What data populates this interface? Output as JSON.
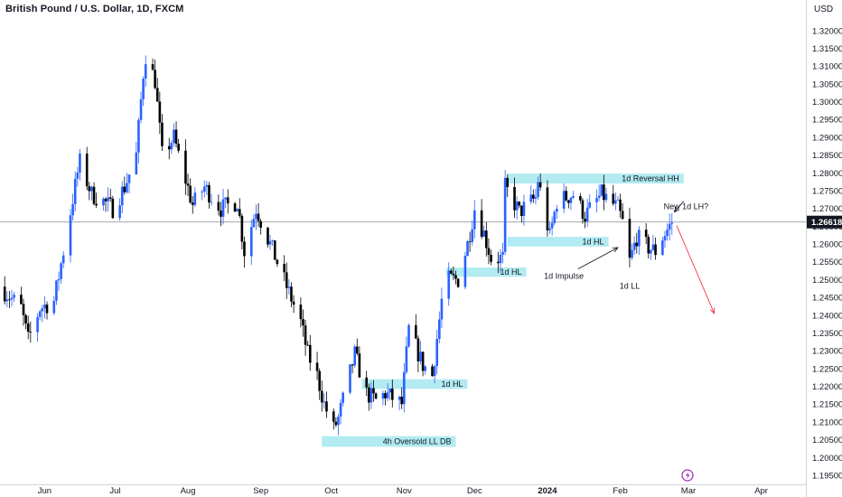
{
  "header": {
    "symbol_title": "British Pound / U.S. Dollar, 1D, FXCM",
    "currency": "USD"
  },
  "colors": {
    "bull": "#2962ff",
    "bear": "#000000",
    "zone": "#b2ebf2",
    "arrow_red": "#f23645",
    "price_line": "#9598a1",
    "axis_border": "#d1d4dc"
  },
  "chart_data": {
    "type": "candlestick",
    "y_axis": {
      "min": 1.195,
      "max": 1.3235,
      "ticks": [
        "1.32000",
        "1.31500",
        "1.31000",
        "1.30500",
        "1.30000",
        "1.29500",
        "1.29000",
        "1.28500",
        "1.28000",
        "1.27500",
        "1.27000",
        "1.26500",
        "1.26000",
        "1.25500",
        "1.25000",
        "1.24500",
        "1.24000",
        "1.23500",
        "1.23000",
        "1.22500",
        "1.22000",
        "1.21500",
        "1.21000",
        "1.20500",
        "1.20000",
        "1.19500"
      ],
      "tick_values": [
        1.32,
        1.315,
        1.31,
        1.305,
        1.3,
        1.295,
        1.29,
        1.285,
        1.28,
        1.275,
        1.27,
        1.265,
        1.26,
        1.255,
        1.25,
        1.245,
        1.24,
        1.235,
        1.23,
        1.225,
        1.22,
        1.215,
        1.21,
        1.205,
        1.2,
        1.195
      ]
    },
    "x_axis": {
      "start": "2023-05-13",
      "end": "2024-04-20",
      "ticks": [
        {
          "label": "Jun",
          "date": "2023-06-01"
        },
        {
          "label": "Jul",
          "date": "2023-07-01"
        },
        {
          "label": "Aug",
          "date": "2023-08-01"
        },
        {
          "label": "Sep",
          "date": "2023-09-01"
        },
        {
          "label": "Oct",
          "date": "2023-10-01"
        },
        {
          "label": "Nov",
          "date": "2023-11-01"
        },
        {
          "label": "Dec",
          "date": "2023-12-01"
        },
        {
          "label": "2024",
          "date": "2024-01-01",
          "bold": true
        },
        {
          "label": "Feb",
          "date": "2024-02-01"
        },
        {
          "label": "Mar",
          "date": "2024-03-01"
        },
        {
          "label": "Apr",
          "date": "2024-04-01"
        }
      ]
    },
    "current_price": 1.26618,
    "current_price_label": "1.26618",
    "close_path": [
      [
        "2023-05-13",
        1.248
      ],
      [
        "2023-05-22",
        1.242
      ],
      [
        "2023-05-25",
        1.233
      ],
      [
        "2023-05-30",
        1.242
      ],
      [
        "2023-06-05",
        1.244
      ],
      [
        "2023-06-09",
        1.258
      ],
      [
        "2023-06-15",
        1.28
      ],
      [
        "2023-06-16",
        1.283
      ],
      [
        "2023-06-21",
        1.274
      ],
      [
        "2023-06-26",
        1.272
      ],
      [
        "2023-06-30",
        1.27
      ],
      [
        "2023-07-05",
        1.276
      ],
      [
        "2023-07-10",
        1.285
      ],
      [
        "2023-07-13",
        1.308
      ],
      [
        "2023-07-14",
        1.313
      ],
      [
        "2023-07-18",
        1.306
      ],
      [
        "2023-07-21",
        1.285
      ],
      [
        "2023-07-26",
        1.29
      ],
      [
        "2023-07-28",
        1.285
      ],
      [
        "2023-08-03",
        1.271
      ],
      [
        "2023-08-08",
        1.276
      ],
      [
        "2023-08-15",
        1.27
      ],
      [
        "2023-08-22",
        1.272
      ],
      [
        "2023-08-25",
        1.258
      ],
      [
        "2023-08-30",
        1.27
      ],
      [
        "2023-09-05",
        1.26
      ],
      [
        "2023-09-12",
        1.248
      ],
      [
        "2023-09-18",
        1.238
      ],
      [
        "2023-09-21",
        1.229
      ],
      [
        "2023-09-25",
        1.223
      ],
      [
        "2023-09-28",
        1.215
      ],
      [
        "2023-10-02",
        1.208
      ],
      [
        "2023-10-04",
        1.211
      ],
      [
        "2023-10-11",
        1.229
      ],
      [
        "2023-10-16",
        1.218
      ],
      [
        "2023-10-20",
        1.216
      ],
      [
        "2023-10-24",
        1.218
      ],
      [
        "2023-10-31",
        1.215
      ],
      [
        "2023-11-03",
        1.236
      ],
      [
        "2023-11-09",
        1.226
      ],
      [
        "2023-11-13",
        1.223
      ],
      [
        "2023-11-17",
        1.244
      ],
      [
        "2023-11-20",
        1.25
      ],
      [
        "2023-11-24",
        1.25
      ],
      [
        "2023-11-28",
        1.26
      ],
      [
        "2023-12-01",
        1.27
      ],
      [
        "2023-12-05",
        1.263
      ],
      [
        "2023-12-08",
        1.256
      ],
      [
        "2023-12-13",
        1.256
      ],
      [
        "2023-12-14",
        1.276
      ],
      [
        "2023-12-20",
        1.269
      ],
      [
        "2023-12-27",
        1.273
      ],
      [
        "2023-12-28",
        1.278
      ],
      [
        "2024-01-02",
        1.262
      ],
      [
        "2024-01-05",
        1.272
      ],
      [
        "2024-01-12",
        1.274
      ],
      [
        "2024-01-17",
        1.268
      ],
      [
        "2024-01-24",
        1.274
      ],
      [
        "2024-01-31",
        1.27
      ],
      [
        "2024-02-02",
        1.266
      ],
      [
        "2024-02-05",
        1.255
      ],
      [
        "2024-02-08",
        1.262
      ],
      [
        "2024-02-13",
        1.259
      ],
      [
        "2024-02-16",
        1.258
      ],
      [
        "2024-02-19",
        1.262
      ],
      [
        "2024-02-22",
        1.265
      ],
      [
        "2024-02-23",
        1.2662
      ]
    ],
    "zones": [
      {
        "label": "1d Reversal HH",
        "start": "2023-12-15",
        "end": "2024-02-28",
        "low": 1.277,
        "high": 1.2798
      },
      {
        "label": "1d HL",
        "start": "2023-12-15",
        "end": "2024-01-27",
        "low": 1.2593,
        "high": 1.262
      },
      {
        "label": "1d HL",
        "start": "2023-11-19",
        "end": "2023-12-23",
        "low": 1.2508,
        "high": 1.2534
      },
      {
        "label": "1d HL",
        "start": "2023-10-14",
        "end": "2023-11-28",
        "low": 1.2193,
        "high": 1.222
      },
      {
        "label": "4h Oversold LL DB",
        "start": "2023-09-27",
        "end": "2023-11-23",
        "low": 1.203,
        "high": 1.206
      }
    ],
    "annotations": [
      {
        "text": "1d Impulse",
        "date": "2024-01-08",
        "price": 1.251
      },
      {
        "text": "1d LL",
        "date": "2024-02-05",
        "price": 1.2482
      },
      {
        "text": "New 1d LH?",
        "date": "2024-02-29",
        "price": 1.2705
      }
    ],
    "arrows": [
      {
        "from": [
          "2024-01-14",
          1.253
        ],
        "to": [
          "2024-01-31",
          1.259
        ],
        "color": "black"
      },
      {
        "from": [
          "2024-02-28",
          1.272
        ],
        "to": [
          "2024-02-24",
          1.269
        ],
        "color": "black"
      },
      {
        "from": [
          "2024-02-25",
          1.2652
        ],
        "to": [
          "2024-03-12",
          1.2405
        ],
        "color": "red"
      }
    ]
  }
}
